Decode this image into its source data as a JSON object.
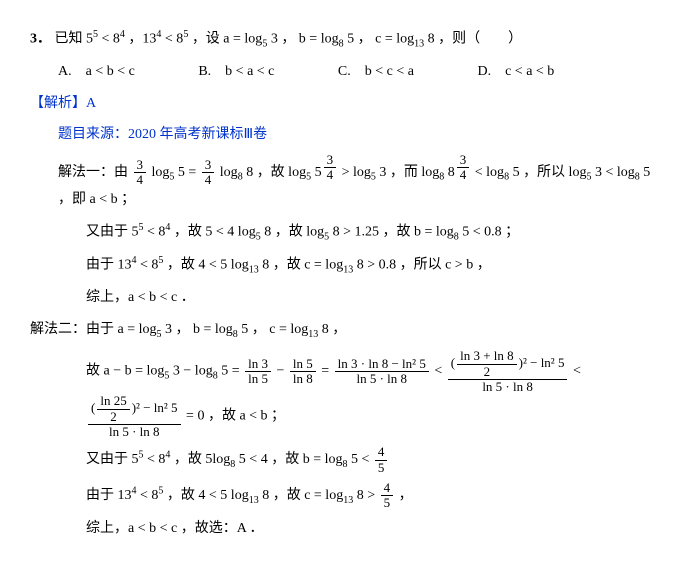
{
  "q": {
    "num": "3．",
    "stem_a": "已知 5",
    "stem_b": " < 8",
    "stem_c": " ，13",
    "stem_d": " < 8",
    "stem_e": " ，设 a = log",
    "stem_f": " 3 ， b = log",
    "stem_g": " 5 ， c = log",
    "stem_h": " 8 ，则（　　）",
    "sup5": "5",
    "sup4": "4",
    "sub5": "5",
    "sub8": "8",
    "sub13": "13"
  },
  "opts": {
    "A": "A.　a < b < c",
    "B": "B.　b < a < c",
    "C": "C.　b < c < a",
    "D": "D.　c < a < b"
  },
  "ans": "【解析】A",
  "src": "题目来源：2020 年高考新课标Ⅲ卷",
  "m1": {
    "lead": "解法一：由 ",
    "f1n": "3",
    "f1d": "4",
    "t1": " log",
    "s1": "5",
    "t1b": " 5 = ",
    "f2n": "3",
    "f2d": "4",
    "t2": " log",
    "s2": "8",
    "t2b": " 8 ，故 log",
    "s3": "5",
    "t2c": " 5",
    "expnum1": "3",
    "expden1": "4",
    "t3": " > log",
    "s4": "5",
    "t3b": " 3 ，而 log",
    "s5": "8",
    "t3c": " 8",
    "expnum2": "3",
    "expden2": "4",
    "t4": " < log",
    "s6": "8",
    "t4b": " 5 ，所以 log",
    "s7": "5",
    "t4c": " 3 < log",
    "s8": "8",
    "t4d": " 5 ，即 a < b ；",
    "l2a": "又由于 5",
    "l2sup1": "5",
    "l2b": " < 8",
    "l2sup2": "4",
    "l2c": " ，故 5 < 4 log",
    "l2s1": "5",
    "l2d": " 8 ，故 log",
    "l2s2": "5",
    "l2e": " 8 > 1.25 ，故 b = log",
    "l2s3": "8",
    "l2f": " 5 < 0.8 ；",
    "l3a": "由于 13",
    "l3sup1": "4",
    "l3b": " < 8",
    "l3sup2": "5",
    "l3c": " ，故 4 < 5 log",
    "l3s1": "13",
    "l3d": " 8 ，故 c = log",
    "l3s2": "13",
    "l3e": " 8 > 0.8 ，所以 c > b ，",
    "l4": "综上，a < b < c ．"
  },
  "m2": {
    "lead": "解法二：由于 a = log",
    "s1": "5",
    "t1": " 3 ， b = log",
    "s2": "8",
    "t2": " 5 ， c = log",
    "s3": "13",
    "t3": " 8 ，",
    "l2a": "故 a − b = log",
    "l2s1": "5",
    "l2b": " 3 − log",
    "l2s2": "8",
    "l2c": " 5 = ",
    "fAna": "ln 3",
    "fAda": "ln 5",
    "minus": " − ",
    "fAnb": "ln 5",
    "fAdb": "ln 8",
    "eq": " = ",
    "fBnum": "ln 3 · ln 8 − ln² 5",
    "fBden": "ln 5 · ln 8",
    "lt": " < ",
    "fCnumL": "(",
    "fCnumFracN": "ln 3 + ln 8",
    "fCnumFracD": "2",
    "fCnumR": ")² − ln² 5",
    "fCden": "ln 5 · ln 8",
    "fDnumL": "(",
    "fDnumFracN": "ln 25",
    "fDnumFracD": "2",
    "fDnumR": ")² − ln² 5",
    "fDden": "ln 5 · ln 8",
    "tail": " = 0 ，故 a < b ；",
    "l3a": "又由于 5",
    "l3sup1": "5",
    "l3b": " < 8",
    "l3sup2": "4",
    "l3c": " ，故 5log",
    "l3s1": "8",
    "l3d": " 5 < 4 ，故 b = log",
    "l3s2": "8",
    "l3e": " 5 < ",
    "l3fn": "4",
    "l3fd": "5",
    "l4a": "由于 13",
    "l4sup1": "4",
    "l4b": " < 8",
    "l4sup2": "5",
    "l4c": " ，故 4 < 5 log",
    "l4s1": "13",
    "l4d": " 8 ，故 c = log",
    "l4s2": "13",
    "l4e": " 8 > ",
    "l4fn": "4",
    "l4fd": "5",
    "l4tail": " ，",
    "l5": "综上，a < b < c ，故选：A ．"
  }
}
